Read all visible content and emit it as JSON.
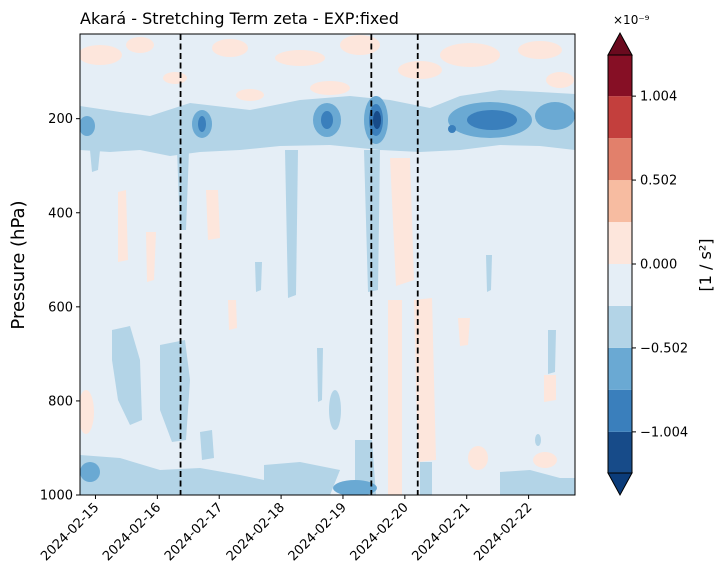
{
  "chart_data": {
    "type": "heatmap",
    "title": "Akará - Stretching Term zeta - EXP:fixed",
    "ylabel": "Pressure (hPa)",
    "xlabel": "",
    "x_range": [
      "2024-02-14T18:00",
      "2024-02-22T18:00"
    ],
    "y_range": [
      20,
      1000
    ],
    "y_inverted": true,
    "x_ticks": [
      "2024-02-15",
      "2024-02-16",
      "2024-02-17",
      "2024-02-18",
      "2024-02-19",
      "2024-02-20",
      "2024-02-21",
      "2024-02-22"
    ],
    "y_ticks": [
      "200",
      "400",
      "600",
      "800",
      "1000"
    ],
    "y_tick_values": [
      200,
      400,
      600,
      800,
      1000
    ],
    "vertical_lines": [
      "2024-02-16T09:00",
      "2024-02-19T11:00",
      "2024-02-20T05:00"
    ],
    "vertical_line_style": "dashed",
    "colorbar": {
      "label": "[1 / s²]",
      "multiplier": "×10⁻⁹",
      "ticks": [
        "1.004",
        "0.502",
        "0.000",
        "−0.502",
        "−1.004"
      ],
      "tick_values": [
        1.004,
        0.502,
        0.0,
        -0.502,
        -1.004
      ],
      "levels": [
        -1.25,
        -1.004,
        -0.753,
        -0.502,
        -0.251,
        0.0,
        0.251,
        0.502,
        0.753,
        1.004,
        1.25
      ],
      "extend": "both",
      "colormap": "RdBu_r",
      "colors": [
        "#0b3c7a",
        "#174b89",
        "#3a7fbc",
        "#6aa9d3",
        "#b3d4e7",
        "#e5eef6",
        "#fde6dc",
        "#f7bca1",
        "#e2806b",
        "#c33f3d",
        "#860f25",
        "#6a0a1e"
      ]
    },
    "background_level_color": "#e5eef6",
    "features": [
      {
        "time": "2024-02-15T00:00",
        "pressure": 200,
        "value": -0.7
      },
      {
        "time": "2024-02-16T12:00",
        "pressure": 205,
        "value": -0.75
      },
      {
        "time": "2024-02-18T21:00",
        "pressure": 195,
        "value": -0.8
      },
      {
        "time": "2024-02-19T12:00",
        "pressure": 205,
        "value": -1.15
      },
      {
        "time": "2024-02-21T12:00",
        "pressure": 205,
        "value": -0.9
      },
      {
        "time": "2024-02-22T12:00",
        "pressure": 200,
        "value": -0.7
      },
      {
        "time": "2024-02-19T00:00",
        "pressure": 980,
        "value": -0.6
      }
    ]
  }
}
